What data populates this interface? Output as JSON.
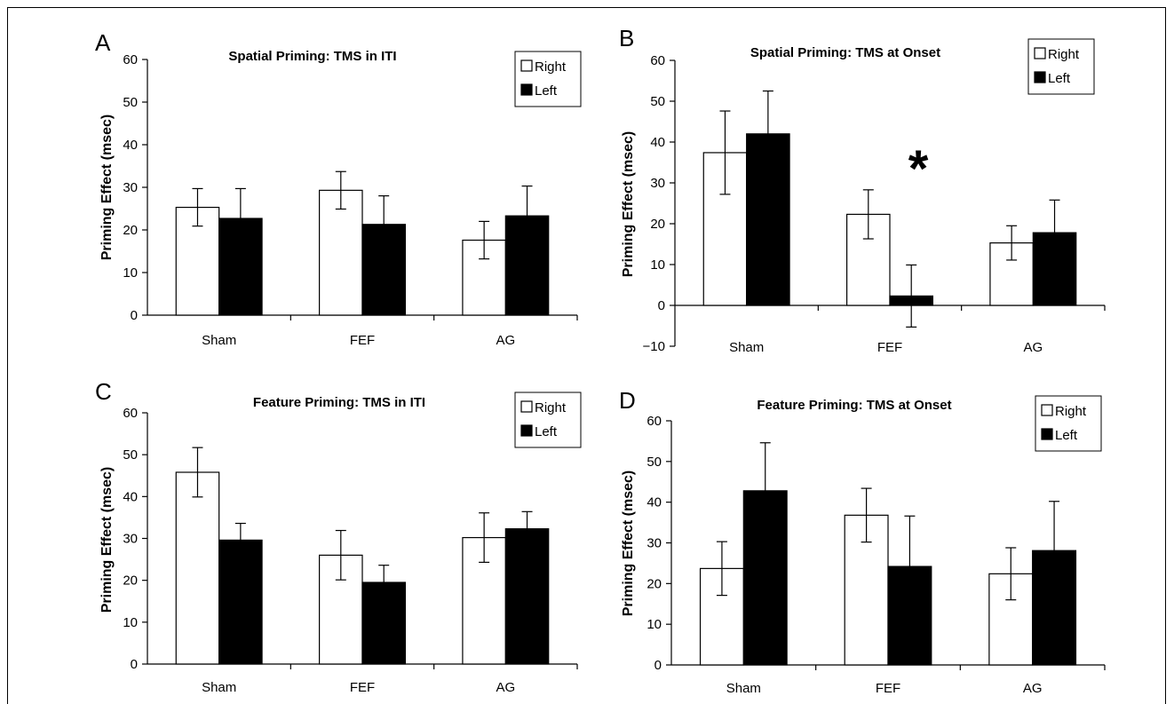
{
  "chart_data": [
    {
      "panel": "A",
      "type": "bar",
      "title": "Spatial Priming: TMS in ITI",
      "ylabel": "Priming Effect (msec)",
      "ylim": [
        0,
        60
      ],
      "yticks": [
        0,
        10,
        20,
        30,
        40,
        50,
        60
      ],
      "categories": [
        "Sham",
        "FEF",
        "AG"
      ],
      "series": [
        {
          "name": "Right",
          "color": "#ffffff",
          "values": [
            25.3,
            29.3,
            17.6
          ],
          "errors": [
            4.4,
            4.4,
            4.4
          ]
        },
        {
          "name": "Left",
          "color": "#000000",
          "values": [
            22.7,
            21.3,
            23.3
          ],
          "errors": [
            7.0,
            6.7,
            7.0
          ]
        }
      ],
      "legend": "top-right",
      "grid": false,
      "annotations": []
    },
    {
      "panel": "B",
      "type": "bar",
      "title": "Spatial Priming: TMS at Onset",
      "ylabel": "Priming Effect (msec)",
      "ylim": [
        -10,
        60
      ],
      "yticks": [
        -10,
        0,
        10,
        20,
        30,
        40,
        50,
        60
      ],
      "categories": [
        "Sham",
        "FEF",
        "AG"
      ],
      "series": [
        {
          "name": "Right",
          "color": "#ffffff",
          "values": [
            37.4,
            22.3,
            15.3
          ],
          "errors": [
            10.2,
            6.0,
            4.2
          ]
        },
        {
          "name": "Left",
          "color": "#000000",
          "values": [
            42.0,
            2.3,
            17.8
          ],
          "errors": [
            10.5,
            7.6,
            8.0
          ]
        }
      ],
      "legend": "top-right",
      "grid": false,
      "annotations": [
        {
          "text": "*",
          "category": "FEF"
        }
      ]
    },
    {
      "panel": "C",
      "type": "bar",
      "title": "Feature Priming: TMS in ITI",
      "ylabel": "Priming Effect (msec)",
      "ylim": [
        0,
        60
      ],
      "yticks": [
        0,
        10,
        20,
        30,
        40,
        50,
        60
      ],
      "categories": [
        "Sham",
        "FEF",
        "AG"
      ],
      "series": [
        {
          "name": "Right",
          "color": "#ffffff",
          "values": [
            45.8,
            26.0,
            30.2
          ],
          "errors": [
            5.9,
            5.9,
            5.9
          ]
        },
        {
          "name": "Left",
          "color": "#000000",
          "values": [
            29.6,
            19.5,
            32.3
          ],
          "errors": [
            4.0,
            4.1,
            4.1
          ]
        }
      ],
      "legend": "top-right",
      "grid": false,
      "annotations": []
    },
    {
      "panel": "D",
      "type": "bar",
      "title": "Feature Priming: TMS at Onset",
      "ylabel": "Priming Effect (msec)",
      "ylim": [
        0,
        60
      ],
      "yticks": [
        0,
        10,
        20,
        30,
        40,
        50,
        60
      ],
      "categories": [
        "Sham",
        "FEF",
        "AG"
      ],
      "series": [
        {
          "name": "Right",
          "color": "#ffffff",
          "values": [
            23.7,
            36.8,
            22.4
          ],
          "errors": [
            6.6,
            6.6,
            6.4
          ]
        },
        {
          "name": "Left",
          "color": "#000000",
          "values": [
            42.8,
            24.2,
            28.1
          ],
          "errors": [
            11.8,
            12.4,
            12.1
          ]
        }
      ],
      "legend": "top-right",
      "grid": false,
      "annotations": []
    }
  ]
}
